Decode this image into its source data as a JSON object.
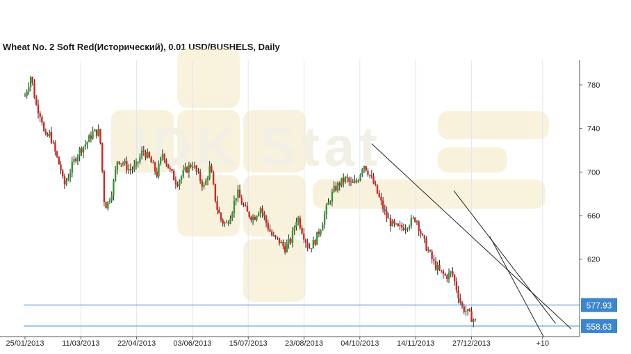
{
  "title": "Wheat  No. 2 Soft Red(Исторический), 0.01 USD/BUSHELS, Daily",
  "watermark": "IDK Stat",
  "colors": {
    "up": "#2e9b2e",
    "down": "#e02020",
    "wick": "#222222",
    "grid": "#dde7f2",
    "axis": "#555555",
    "hline": "#3a7fc0",
    "badge": "#3b86cf",
    "badge_text": "#ffffff",
    "trend": "#222222"
  },
  "chart_data": {
    "type": "candlestick",
    "title": "Wheat  No. 2 Soft Red(Исторический), 0.01 USD/BUSHELS, Daily",
    "x_ticks": [
      "25/01/2013",
      "11/03/2013",
      "22/04/2013",
      "03/06/2013",
      "15/07/2013",
      "23/08/2013",
      "04/10/2013",
      "14/11/2013",
      "27/12/2013",
      "+10"
    ],
    "y_ticks": [
      "780",
      "740",
      "700",
      "660",
      "620"
    ],
    "ylim": [
      549,
      803
    ],
    "grid": true,
    "price_axis": "right",
    "horizontal_levels": [
      {
        "label": "577.93",
        "value": 577.93
      },
      {
        "label": "558.63",
        "value": 558.63
      }
    ],
    "trendlines": [
      {
        "from": {
          "bar": 0.625,
          "value": 726
        },
        "to": {
          "bar": 0.985,
          "value": 556
        }
      },
      {
        "from": {
          "bar": 0.773,
          "value": 683
        },
        "to": {
          "bar": 0.957,
          "value": 561
        }
      },
      {
        "from": {
          "bar": 0.838,
          "value": 641
        },
        "to": {
          "bar": 0.935,
          "value": 549
        }
      }
    ],
    "close_path": [
      [
        0.0,
        770
      ],
      [
        0.008,
        782
      ],
      [
        0.012,
        789
      ],
      [
        0.022,
        762
      ],
      [
        0.033,
        751
      ],
      [
        0.04,
        730
      ],
      [
        0.05,
        735
      ],
      [
        0.06,
        719
      ],
      [
        0.072,
        702
      ],
      [
        0.078,
        687
      ],
      [
        0.09,
        700
      ],
      [
        0.1,
        712
      ],
      [
        0.11,
        720
      ],
      [
        0.124,
        727
      ],
      [
        0.136,
        736
      ],
      [
        0.15,
        737
      ],
      [
        0.16,
        668
      ],
      [
        0.167,
        672
      ],
      [
        0.176,
        685
      ],
      [
        0.186,
        712
      ],
      [
        0.198,
        708
      ],
      [
        0.21,
        702
      ],
      [
        0.223,
        705
      ],
      [
        0.237,
        720
      ],
      [
        0.25,
        712
      ],
      [
        0.265,
        698
      ],
      [
        0.277,
        718
      ],
      [
        0.29,
        702
      ],
      [
        0.305,
        690
      ],
      [
        0.32,
        700
      ],
      [
        0.336,
        708
      ],
      [
        0.35,
        695
      ],
      [
        0.36,
        686
      ],
      [
        0.372,
        705
      ],
      [
        0.385,
        668
      ],
      [
        0.395,
        655
      ],
      [
        0.405,
        652
      ],
      [
        0.416,
        665
      ],
      [
        0.426,
        682
      ],
      [
        0.436,
        671
      ],
      [
        0.447,
        662
      ],
      [
        0.46,
        658
      ],
      [
        0.473,
        668
      ],
      [
        0.485,
        653
      ],
      [
        0.498,
        640
      ],
      [
        0.51,
        637
      ],
      [
        0.522,
        630
      ],
      [
        0.535,
        638
      ],
      [
        0.547,
        660
      ],
      [
        0.558,
        645
      ],
      [
        0.57,
        630
      ],
      [
        0.582,
        636
      ],
      [
        0.595,
        650
      ],
      [
        0.607,
        668
      ],
      [
        0.62,
        683
      ],
      [
        0.633,
        690
      ],
      [
        0.645,
        694
      ],
      [
        0.657,
        688
      ],
      [
        0.668,
        692
      ],
      [
        0.68,
        708
      ],
      [
        0.69,
        700
      ],
      [
        0.7,
        690
      ],
      [
        0.712,
        676
      ],
      [
        0.725,
        660
      ],
      [
        0.737,
        652
      ],
      [
        0.75,
        648
      ],
      [
        0.762,
        650
      ],
      [
        0.774,
        654
      ],
      [
        0.786,
        658
      ],
      [
        0.798,
        640
      ],
      [
        0.81,
        628
      ],
      [
        0.822,
        616
      ],
      [
        0.834,
        608
      ],
      [
        0.846,
        604
      ],
      [
        0.858,
        608
      ],
      [
        0.868,
        592
      ],
      [
        0.878,
        576
      ],
      [
        0.888,
        572
      ],
      [
        0.898,
        566
      ],
      [
        0.905,
        563
      ]
    ]
  }
}
